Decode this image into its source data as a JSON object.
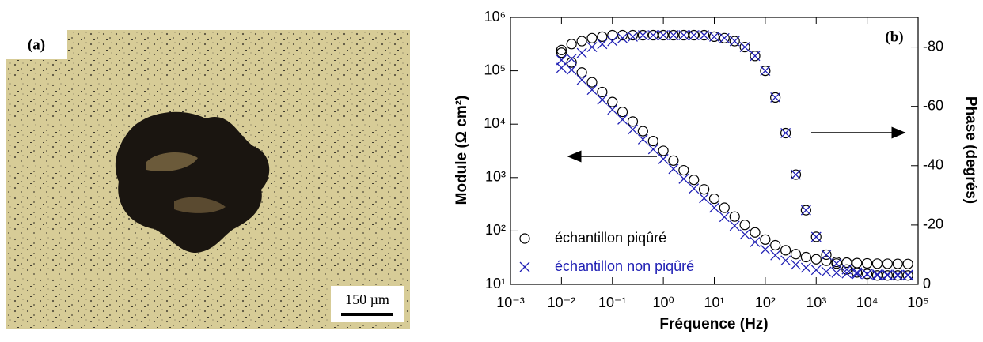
{
  "panel_a": {
    "label": "(a)",
    "scale_bar": "150 µm"
  },
  "chart_data": {
    "type": "scatter",
    "label": "(b)",
    "x_label": "Fréquence (Hz)",
    "y_label": "Module (Ω cm²)",
    "y2_label": "Phase (degrés)",
    "x": [
      0.01,
      0.0158,
      0.0251,
      0.0398,
      0.0631,
      0.1,
      0.158,
      0.251,
      0.398,
      0.631,
      1,
      1.58,
      2.51,
      3.98,
      6.31,
      10,
      15.8,
      25.1,
      39.8,
      63.1,
      100,
      158,
      251,
      398,
      631,
      1000,
      1580,
      2510,
      3980,
      6310,
      10000,
      15800,
      25100,
      39800,
      63100
    ],
    "series": [
      {
        "name": "échantillon piqûré",
        "color": "#000000",
        "marker": "circle",
        "values": [
          218000,
          143000,
          93000,
          61000,
          40000,
          26000,
          17000,
          11200,
          7400,
          4830,
          3170,
          2080,
          1370,
          907,
          602,
          402,
          272,
          186,
          130,
          94,
          69,
          54,
          43.5,
          36.8,
          32.4,
          29.5,
          27.6,
          26.3,
          25.5,
          25,
          24.7,
          24.4,
          24.3,
          24.2,
          24.1
        ],
        "phase": [
          -79,
          -81,
          -82,
          -83,
          -83.5,
          -84,
          -84,
          -84,
          -84,
          -84,
          -84,
          -84,
          -84,
          -84,
          -84,
          -83.5,
          -83,
          -82,
          -80,
          -77,
          -72,
          -63,
          -51,
          -37,
          -25,
          -16,
          -10,
          -7,
          -5,
          -4,
          -3.5,
          -3,
          -3,
          -3,
          -3
        ]
      },
      {
        "name": "échantillon non piqûré",
        "color": "#1f1fb4",
        "marker": "cross",
        "values": [
          159000,
          104000,
          67600,
          44000,
          28700,
          18700,
          12200,
          7960,
          5200,
          3390,
          2220,
          1450,
          948,
          623,
          411,
          273,
          183,
          125,
          86,
          62,
          45,
          35,
          28,
          23.4,
          20.5,
          18.6,
          17.3,
          16.5,
          16,
          15.6,
          15.4,
          15.3,
          15.2,
          15.1,
          15.1
        ],
        "phase": [
          -73,
          -76,
          -78,
          -80,
          -81,
          -82,
          -83,
          -83.5,
          -84,
          -84,
          -84,
          -84,
          -84,
          -84,
          -84,
          -83.5,
          -83,
          -82,
          -80,
          -77,
          -72,
          -63,
          -51,
          -37,
          -25,
          -16,
          -10,
          -7,
          -5,
          -4,
          -3.5,
          -3,
          -3,
          -3,
          -3
        ]
      }
    ],
    "xlog": true,
    "ylog": true,
    "xlim": [
      0.001,
      100000
    ],
    "xticks": [
      {
        "value": 0.001,
        "label": "10⁻³"
      },
      {
        "value": 0.01,
        "label": "10⁻²"
      },
      {
        "value": 0.1,
        "label": "10⁻¹"
      },
      {
        "value": 1,
        "label": "10⁰"
      },
      {
        "value": 10,
        "label": "10¹"
      },
      {
        "value": 100,
        "label": "10²"
      },
      {
        "value": 1000,
        "label": "10³"
      },
      {
        "value": 10000,
        "label": "10⁴"
      },
      {
        "value": 100000,
        "label": "10⁵"
      }
    ],
    "ylim": [
      10,
      1000000
    ],
    "yticks": [
      {
        "value": 10,
        "label": "10¹"
      },
      {
        "value": 100,
        "label": "10²"
      },
      {
        "value": 1000,
        "label": "10³"
      },
      {
        "value": 10000,
        "label": "10⁴"
      },
      {
        "value": 100000,
        "label": "10⁵"
      },
      {
        "value": 1000000,
        "label": "10⁶"
      }
    ],
    "y2lim": [
      0,
      -90
    ],
    "y2ticks": [
      -80,
      -60,
      -40,
      -20,
      0
    ],
    "legend": "lower left"
  }
}
